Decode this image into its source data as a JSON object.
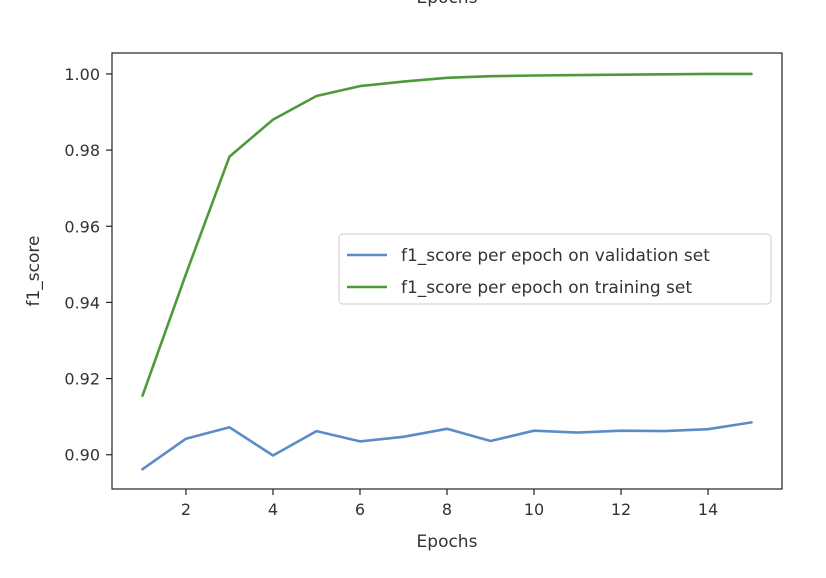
{
  "top_cut_text": "Epochs",
  "chart_data": {
    "type": "line",
    "title": "",
    "xlabel": "Epochs",
    "ylabel": "f1_score",
    "xlim": [
      0.3,
      15.7
    ],
    "ylim": [
      0.891,
      1.0055
    ],
    "xticks": [
      2,
      4,
      6,
      8,
      10,
      12,
      14
    ],
    "yticks": [
      0.9,
      0.92,
      0.94,
      0.96,
      0.98,
      1.0
    ],
    "ytick_labels": [
      "0.90",
      "0.92",
      "0.94",
      "0.96",
      "0.98",
      "1.00"
    ],
    "grid": false,
    "legend_position": "center-right",
    "x": [
      1,
      2,
      3,
      4,
      5,
      6,
      7,
      8,
      9,
      10,
      11,
      12,
      13,
      14,
      15
    ],
    "series": [
      {
        "name": "f1_score per epoch on validation set",
        "color": "#5b8cc8",
        "values": [
          0.8962,
          0.9042,
          0.9072,
          0.8998,
          0.9062,
          0.9035,
          0.9047,
          0.9068,
          0.9036,
          0.9063,
          0.9058,
          0.9063,
          0.9062,
          0.9067,
          0.9085
        ]
      },
      {
        "name": "f1_score per epoch on training set",
        "color": "#4e9a3a",
        "values": [
          0.9155,
          0.9475,
          0.9783,
          0.988,
          0.9942,
          0.9968,
          0.998,
          0.999,
          0.9994,
          0.9996,
          0.9997,
          0.9998,
          0.9999,
          1.0,
          1.0
        ]
      }
    ]
  }
}
